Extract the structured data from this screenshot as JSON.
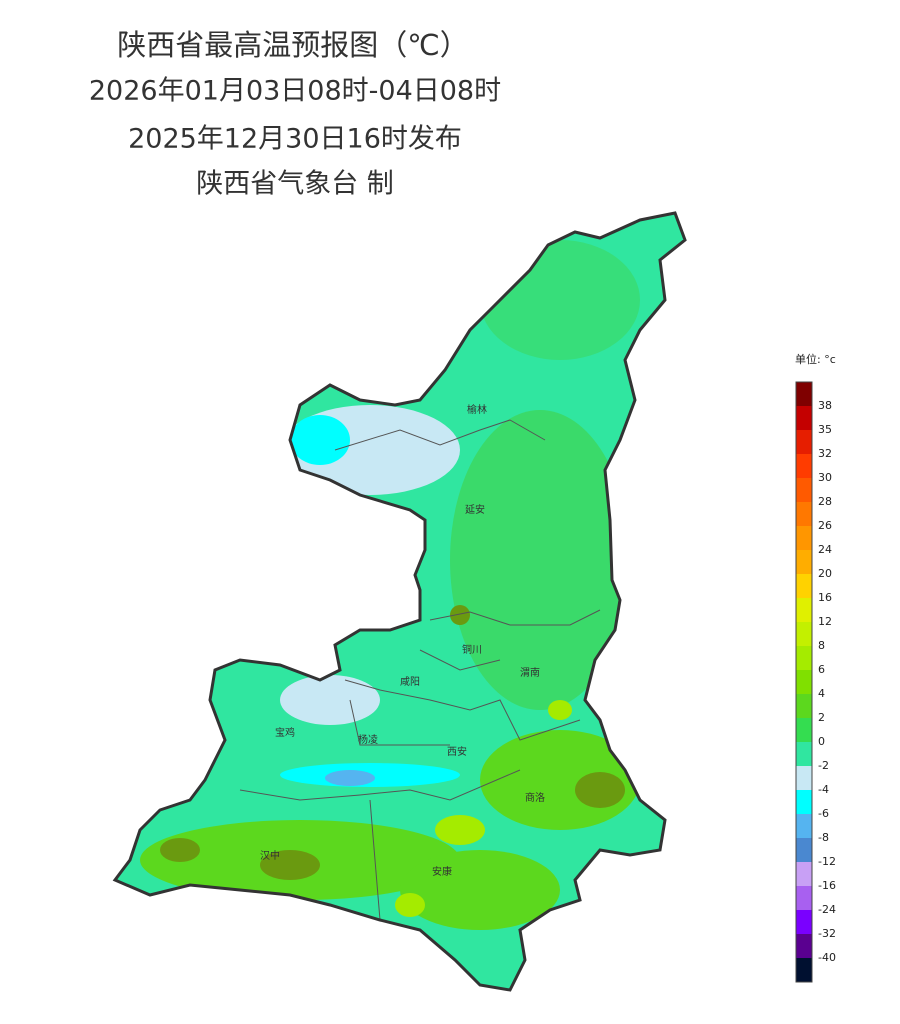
{
  "header": {
    "title": "陕西省最高温预报图（℃）",
    "period": "2026年01月03日08时-04日08时",
    "issued": "2025年12月30日16时发布",
    "producer": "陕西省气象台 制"
  },
  "legend": {
    "unit": "单位: °c",
    "labels": [
      38,
      35,
      32,
      30,
      28,
      26,
      24,
      20,
      16,
      12,
      8,
      6,
      4,
      2,
      0,
      -2,
      -4,
      -6,
      -8,
      -12,
      -16,
      -24,
      -32,
      -40
    ],
    "colors": [
      "#7f0000",
      "#c40000",
      "#e61e00",
      "#ff3c00",
      "#ff5a00",
      "#ff7800",
      "#ff9600",
      "#ffad00",
      "#ffd200",
      "#e0f000",
      "#c3f000",
      "#a5eb00",
      "#80e000",
      "#5cd81e",
      "#34dd50",
      "#30e6a0",
      "#c8e8f4",
      "#00ffff",
      "#55b4f0",
      "#4a88d0",
      "#c8a0f5",
      "#a860f0",
      "#7a00ff",
      "#5a0090",
      "#001030"
    ]
  },
  "cities": [
    "榆林",
    "延安",
    "铜川",
    "咸阳",
    "渭南",
    "宝鸡",
    "杨凌",
    "西安",
    "商洛",
    "汉中",
    "安康"
  ]
}
